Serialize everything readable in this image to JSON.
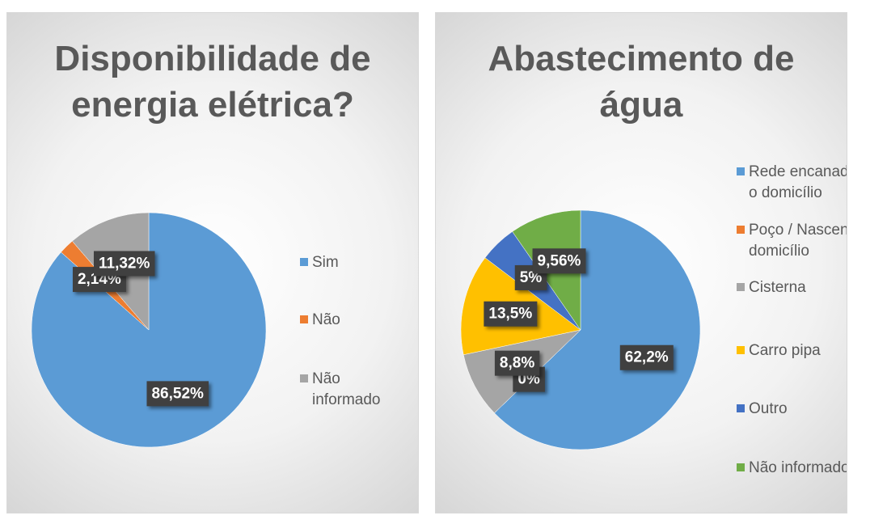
{
  "chart_data": [
    {
      "type": "pie",
      "title": "Disponibilidade de energia elétrica?",
      "categories": [
        "Sim",
        "Não",
        "Não informado"
      ],
      "values": [
        86.52,
        2.14,
        11.32
      ],
      "value_labels": [
        "86,52%",
        "2,14%",
        "11,32%"
      ],
      "colors": [
        "#5b9bd5",
        "#ed7d31",
        "#a5a5a5"
      ]
    },
    {
      "type": "pie",
      "title": "Abastecimento de água",
      "categories": [
        "Rede encanada até o domicílio",
        "Poço / Nascente no domicílio",
        "Cisterna",
        "Carro pipa",
        "Outro",
        "Não informado"
      ],
      "values": [
        62.2,
        0,
        8.8,
        13.5,
        5,
        9.56
      ],
      "value_labels": [
        "62,2%",
        "0%",
        "8,8%",
        "13,5%",
        "5%",
        "9,56%"
      ],
      "colors": [
        "#5b9bd5",
        "#ed7d31",
        "#a5a5a5",
        "#ffc000",
        "#4472c4",
        "#70ad47"
      ]
    }
  ]
}
